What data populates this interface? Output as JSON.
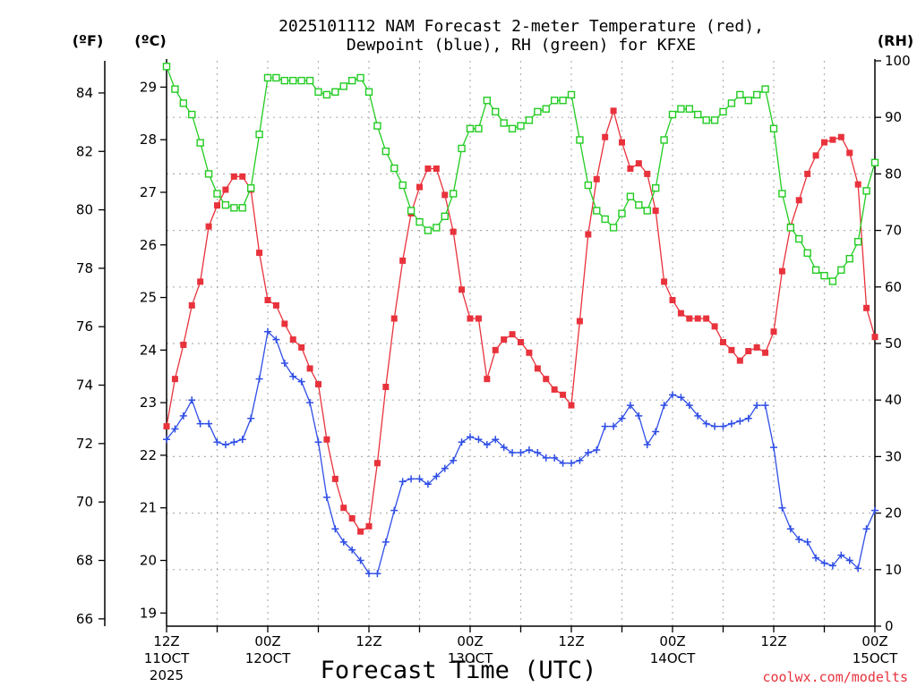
{
  "chart_data": {
    "type": "line",
    "title": [
      "2025101112 NAM Forecast 2-meter Temperature (red),",
      "Dewpoint (blue), RH (green) for KFXE"
    ],
    "axis_units": {
      "fahrenheit": "(ºF)",
      "celsius": "(ºC)",
      "rh": "(RH)"
    },
    "xlabel": "Forecast Time (UTC)",
    "credit": "coolwx.com/modelts",
    "x_hours": [
      0,
      84
    ],
    "x_ticks": [
      {
        "h": 0,
        "lines": [
          "12Z",
          "11OCT",
          "2025"
        ]
      },
      {
        "h": 12,
        "lines": [
          "00Z",
          "12OCT"
        ]
      },
      {
        "h": 24,
        "lines": [
          "12Z"
        ]
      },
      {
        "h": 36,
        "lines": [
          "00Z",
          "13OCT"
        ]
      },
      {
        "h": 48,
        "lines": [
          "12Z"
        ]
      },
      {
        "h": 60,
        "lines": [
          "00Z",
          "14OCT"
        ]
      },
      {
        "h": 72,
        "lines": [
          "12Z"
        ]
      },
      {
        "h": 84,
        "lines": [
          "00Z",
          "15OCT"
        ]
      }
    ],
    "y_celsius_range": [
      18.75,
      29.5
    ],
    "y_celsius_ticks": [
      "19",
      "20",
      "21",
      "22",
      "23",
      "24",
      "25",
      "26",
      "27",
      "28",
      "29"
    ],
    "y_fahrenheit_ticks": [
      "66",
      "68",
      "70",
      "72",
      "74",
      "76",
      "78",
      "80",
      "82",
      "84"
    ],
    "y_rh_range": [
      0,
      100
    ],
    "y_rh_ticks": [
      "0",
      "10",
      "20",
      "30",
      "40",
      "50",
      "60",
      "70",
      "80",
      "90",
      "100"
    ],
    "series": [
      {
        "name": "Temperature",
        "color": "#e8323c",
        "marker": "filled-square",
        "points": [
          [
            0,
            22.55
          ],
          [
            1,
            23.45
          ],
          [
            2,
            24.1
          ],
          [
            3,
            24.85
          ],
          [
            4,
            25.3
          ],
          [
            5,
            26.35
          ],
          [
            6,
            26.75
          ],
          [
            7,
            27.05
          ],
          [
            8,
            27.3
          ],
          [
            9,
            27.3
          ],
          [
            10,
            27.05
          ],
          [
            11,
            25.85
          ],
          [
            12,
            24.95
          ],
          [
            13,
            24.85
          ],
          [
            14,
            24.5
          ],
          [
            15,
            24.2
          ],
          [
            16,
            24.05
          ],
          [
            17,
            23.65
          ],
          [
            18,
            23.35
          ],
          [
            19,
            22.3
          ],
          [
            20,
            21.55
          ],
          [
            21,
            21.0
          ],
          [
            22,
            20.8
          ],
          [
            23,
            20.55
          ],
          [
            24,
            20.65
          ],
          [
            25,
            21.85
          ],
          [
            26,
            23.3
          ],
          [
            27,
            24.6
          ],
          [
            28,
            25.7
          ],
          [
            29,
            26.6
          ],
          [
            30,
            27.1
          ],
          [
            31,
            27.45
          ],
          [
            32,
            27.45
          ],
          [
            33,
            26.95
          ],
          [
            34,
            26.25
          ],
          [
            35,
            25.15
          ],
          [
            36,
            24.6
          ],
          [
            37,
            24.6
          ],
          [
            38,
            23.45
          ],
          [
            39,
            24.0
          ],
          [
            40,
            24.2
          ],
          [
            41,
            24.3
          ],
          [
            42,
            24.15
          ],
          [
            43,
            23.95
          ],
          [
            44,
            23.65
          ],
          [
            45,
            23.45
          ],
          [
            46,
            23.25
          ],
          [
            47,
            23.15
          ],
          [
            48,
            22.95
          ],
          [
            49,
            24.55
          ],
          [
            50,
            26.2
          ],
          [
            51,
            27.25
          ],
          [
            52,
            28.05
          ],
          [
            53,
            28.55
          ],
          [
            54,
            27.95
          ],
          [
            55,
            27.45
          ],
          [
            56,
            27.55
          ],
          [
            57,
            27.35
          ],
          [
            58,
            26.65
          ],
          [
            59,
            25.3
          ],
          [
            60,
            24.95
          ],
          [
            61,
            24.7
          ],
          [
            62,
            24.6
          ],
          [
            63,
            24.6
          ],
          [
            64,
            24.6
          ],
          [
            65,
            24.45
          ],
          [
            66,
            24.15
          ],
          [
            67,
            24.0
          ],
          [
            68,
            23.8
          ],
          [
            69,
            23.98
          ],
          [
            70,
            24.05
          ],
          [
            71,
            23.95
          ],
          [
            72,
            24.35
          ],
          [
            73,
            25.5
          ],
          [
            74,
            26.35
          ],
          [
            75,
            26.85
          ],
          [
            76,
            27.35
          ],
          [
            77,
            27.7
          ],
          [
            78,
            27.95
          ],
          [
            79,
            28.0
          ],
          [
            80,
            28.05
          ],
          [
            81,
            27.75
          ],
          [
            82,
            27.15
          ],
          [
            83,
            24.8
          ],
          [
            84,
            24.25
          ]
        ]
      },
      {
        "name": "Dewpoint",
        "color": "#2f4ee6",
        "marker": "plus",
        "points": [
          [
            0,
            22.3
          ],
          [
            1,
            22.5
          ],
          [
            2,
            22.75
          ],
          [
            3,
            23.05
          ],
          [
            4,
            22.6
          ],
          [
            5,
            22.6
          ],
          [
            6,
            22.25
          ],
          [
            7,
            22.2
          ],
          [
            8,
            22.25
          ],
          [
            9,
            22.3
          ],
          [
            10,
            22.7
          ],
          [
            11,
            23.45
          ],
          [
            12,
            24.35
          ],
          [
            13,
            24.2
          ],
          [
            14,
            23.75
          ],
          [
            15,
            23.5
          ],
          [
            16,
            23.4
          ],
          [
            17,
            23.0
          ],
          [
            18,
            22.25
          ],
          [
            19,
            21.2
          ],
          [
            20,
            20.6
          ],
          [
            21,
            20.35
          ],
          [
            22,
            20.2
          ],
          [
            23,
            20.0
          ],
          [
            24,
            19.75
          ],
          [
            25,
            19.75
          ],
          [
            26,
            20.35
          ],
          [
            27,
            20.95
          ],
          [
            28,
            21.5
          ],
          [
            29,
            21.55
          ],
          [
            30,
            21.55
          ],
          [
            31,
            21.45
          ],
          [
            32,
            21.6
          ],
          [
            33,
            21.75
          ],
          [
            34,
            21.9
          ],
          [
            35,
            22.25
          ],
          [
            36,
            22.35
          ],
          [
            37,
            22.3
          ],
          [
            38,
            22.2
          ],
          [
            39,
            22.3
          ],
          [
            40,
            22.15
          ],
          [
            41,
            22.05
          ],
          [
            42,
            22.05
          ],
          [
            43,
            22.1
          ],
          [
            44,
            22.05
          ],
          [
            45,
            21.95
          ],
          [
            46,
            21.95
          ],
          [
            47,
            21.85
          ],
          [
            48,
            21.85
          ],
          [
            49,
            21.9
          ],
          [
            50,
            22.05
          ],
          [
            51,
            22.1
          ],
          [
            52,
            22.55
          ],
          [
            53,
            22.55
          ],
          [
            54,
            22.7
          ],
          [
            55,
            22.95
          ],
          [
            56,
            22.75
          ],
          [
            57,
            22.2
          ],
          [
            58,
            22.45
          ],
          [
            59,
            22.95
          ],
          [
            60,
            23.15
          ],
          [
            61,
            23.1
          ],
          [
            62,
            22.95
          ],
          [
            63,
            22.75
          ],
          [
            64,
            22.6
          ],
          [
            65,
            22.55
          ],
          [
            66,
            22.55
          ],
          [
            67,
            22.6
          ],
          [
            68,
            22.65
          ],
          [
            69,
            22.7
          ],
          [
            70,
            22.95
          ],
          [
            71,
            22.95
          ],
          [
            72,
            22.15
          ],
          [
            73,
            21.0
          ],
          [
            74,
            20.6
          ],
          [
            75,
            20.4
          ],
          [
            76,
            20.35
          ],
          [
            77,
            20.05
          ],
          [
            78,
            19.95
          ],
          [
            79,
            19.9
          ],
          [
            80,
            20.1
          ],
          [
            81,
            20.0
          ],
          [
            82,
            19.85
          ],
          [
            83,
            20.6
          ],
          [
            84,
            20.95
          ]
        ]
      },
      {
        "name": "RH",
        "color": "#22cc22",
        "marker": "open-square",
        "axis": "right",
        "points": [
          [
            0,
            99
          ],
          [
            1,
            95
          ],
          [
            2,
            92.5
          ],
          [
            3,
            90.5
          ],
          [
            4,
            85.5
          ],
          [
            5,
            80
          ],
          [
            6,
            76.5
          ],
          [
            7,
            74.5
          ],
          [
            8,
            74
          ],
          [
            9,
            74
          ],
          [
            10,
            77.5
          ],
          [
            11,
            87
          ],
          [
            12,
            97
          ],
          [
            13,
            97
          ],
          [
            14,
            96.5
          ],
          [
            15,
            96.5
          ],
          [
            16,
            96.5
          ],
          [
            17,
            96.5
          ],
          [
            18,
            94.5
          ],
          [
            19,
            94
          ],
          [
            20,
            94.5
          ],
          [
            21,
            95.5
          ],
          [
            22,
            96.5
          ],
          [
            23,
            97
          ],
          [
            24,
            94.5
          ],
          [
            25,
            88.5
          ],
          [
            26,
            84
          ],
          [
            27,
            81
          ],
          [
            28,
            78
          ],
          [
            29,
            73.5
          ],
          [
            30,
            71.5
          ],
          [
            31,
            70
          ],
          [
            32,
            70.5
          ],
          [
            33,
            72.5
          ],
          [
            34,
            76.5
          ],
          [
            35,
            84.5
          ],
          [
            36,
            88
          ],
          [
            37,
            88
          ],
          [
            38,
            93
          ],
          [
            39,
            91
          ],
          [
            40,
            89
          ],
          [
            41,
            88
          ],
          [
            42,
            88.5
          ],
          [
            43,
            89.5
          ],
          [
            44,
            91
          ],
          [
            45,
            91.5
          ],
          [
            46,
            93
          ],
          [
            47,
            93
          ],
          [
            48,
            94
          ],
          [
            49,
            86
          ],
          [
            50,
            78
          ],
          [
            51,
            73.5
          ],
          [
            52,
            72
          ],
          [
            53,
            70.5
          ],
          [
            54,
            73
          ],
          [
            55,
            76
          ],
          [
            56,
            74.5
          ],
          [
            57,
            73.5
          ],
          [
            58,
            77.5
          ],
          [
            59,
            86
          ],
          [
            60,
            90.5
          ],
          [
            61,
            91.5
          ],
          [
            62,
            91.5
          ],
          [
            63,
            90.5
          ],
          [
            64,
            89.5
          ],
          [
            65,
            89.5
          ],
          [
            66,
            91
          ],
          [
            67,
            92.5
          ],
          [
            68,
            94
          ],
          [
            69,
            93
          ],
          [
            70,
            94
          ],
          [
            71,
            95
          ],
          [
            72,
            88
          ],
          [
            73,
            76.5
          ],
          [
            74,
            70.5
          ],
          [
            75,
            68.5
          ],
          [
            76,
            66
          ],
          [
            77,
            63
          ],
          [
            78,
            62
          ],
          [
            79,
            61
          ],
          [
            80,
            63
          ],
          [
            81,
            65
          ],
          [
            82,
            68
          ],
          [
            83,
            77
          ],
          [
            84,
            82
          ]
        ]
      }
    ]
  }
}
